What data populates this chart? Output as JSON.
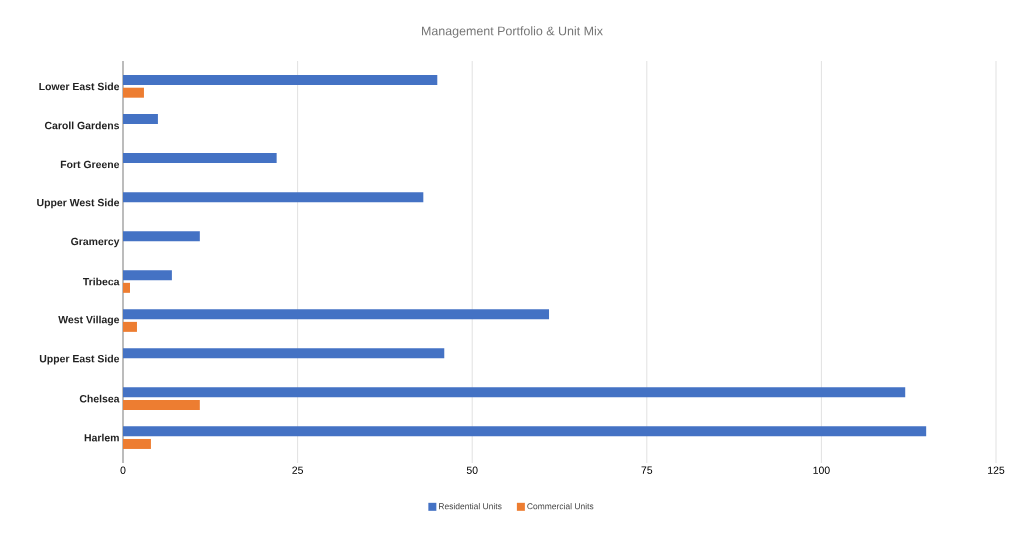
{
  "chart_data": {
    "type": "bar",
    "orientation": "horizontal",
    "title": "Management Portfolio & Unit Mix",
    "categories": [
      "Lower East Side",
      "Caroll Gardens",
      "Fort Greene",
      "Upper West Side",
      "Gramercy",
      "Tribeca",
      "West Village",
      "Upper East Side",
      "Chelsea",
      "Harlem"
    ],
    "series": [
      {
        "name": "Residential Units",
        "color": "#4472c4",
        "values": [
          45,
          5,
          22,
          43,
          11,
          7,
          61,
          46,
          112,
          115
        ]
      },
      {
        "name": "Commercial Units",
        "color": "#ed7d31",
        "values": [
          3,
          null,
          null,
          null,
          null,
          1,
          2,
          null,
          11,
          4
        ]
      }
    ],
    "xlim": [
      0,
      125
    ],
    "xticks": [
      0,
      25,
      50,
      75,
      100,
      125
    ],
    "grid": "x",
    "legend": "bottom"
  }
}
